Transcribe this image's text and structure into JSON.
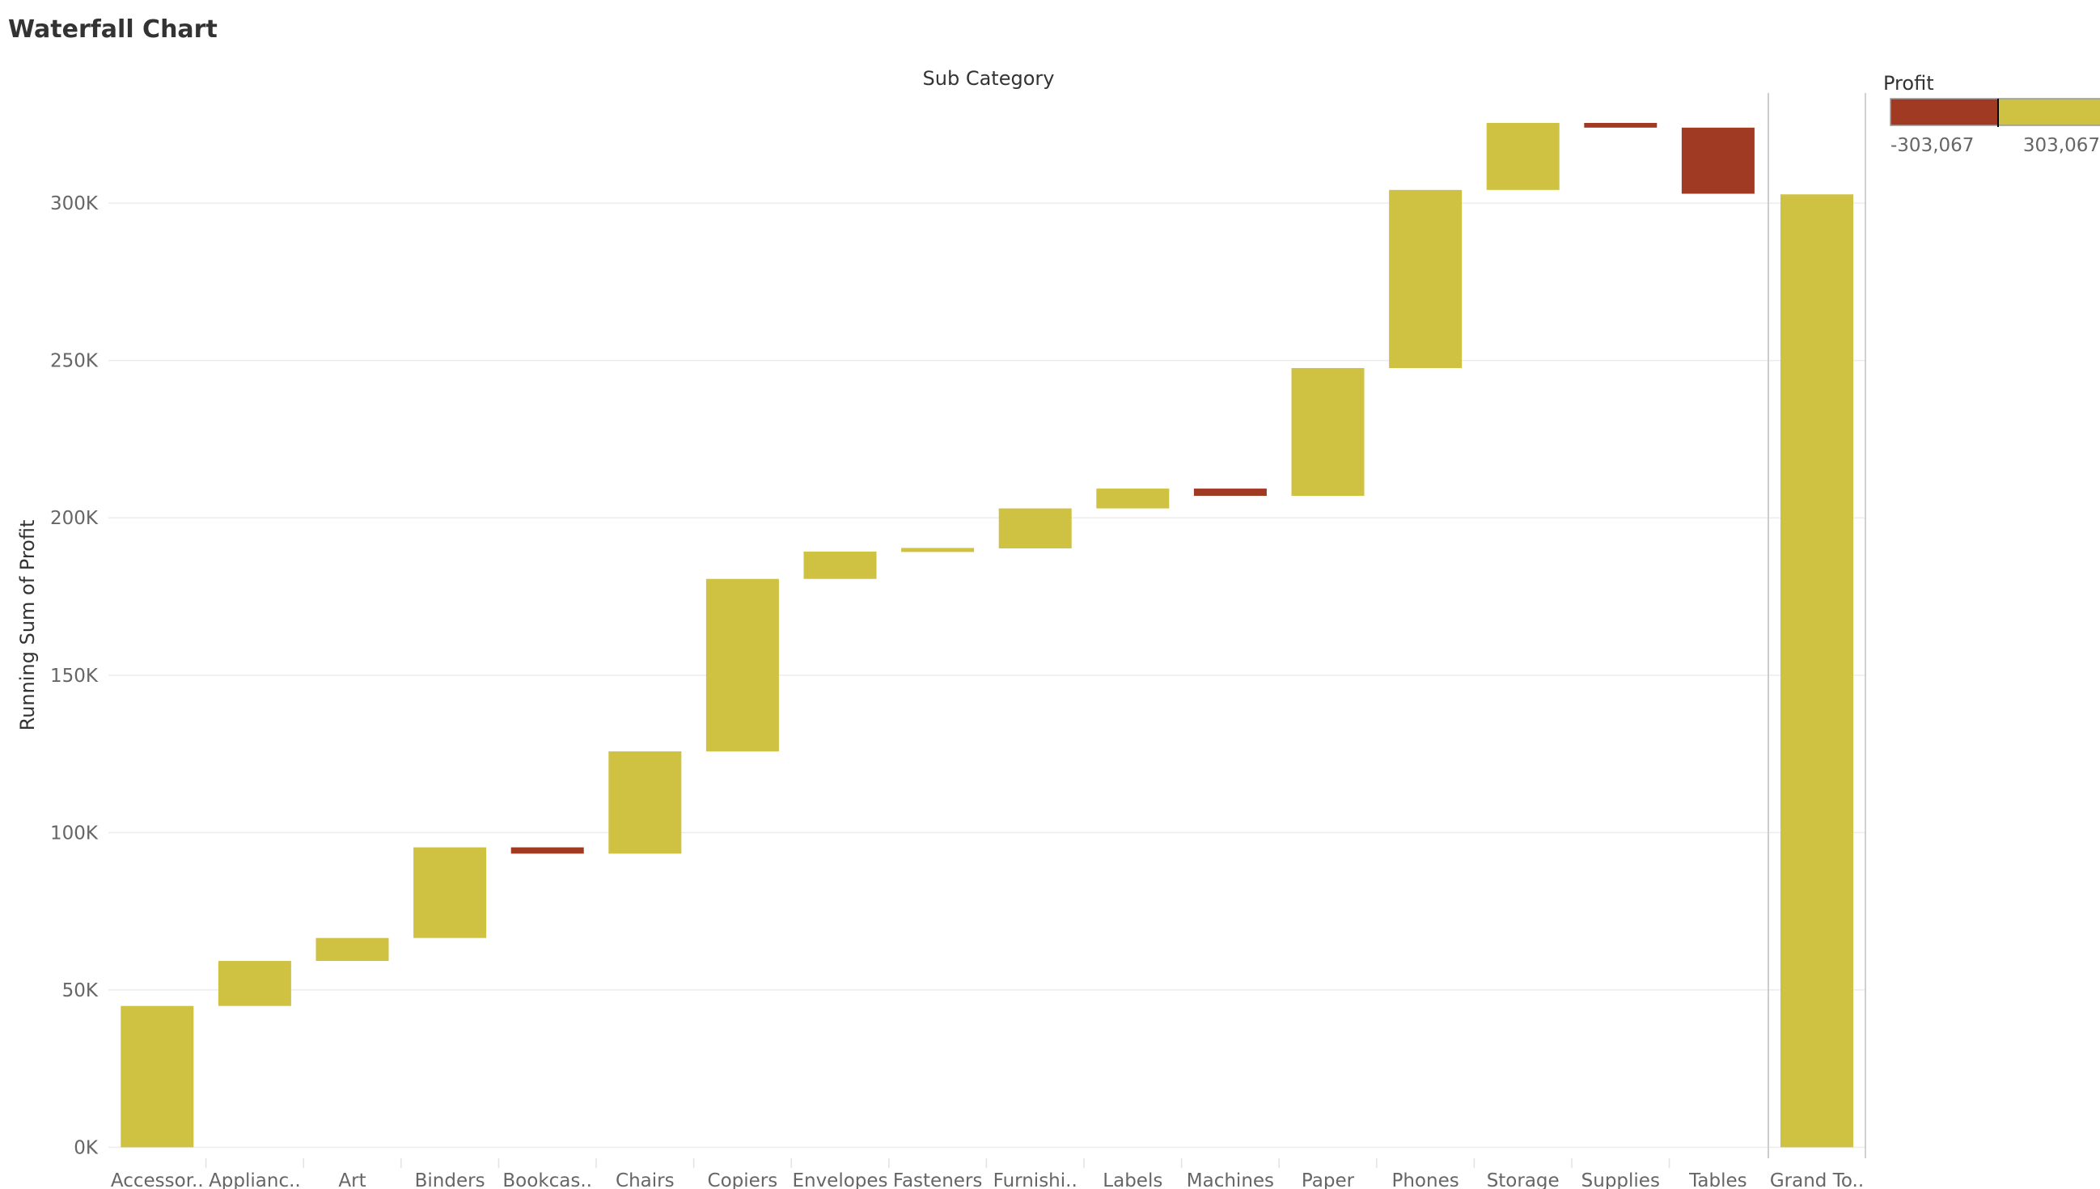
{
  "title": "Waterfall Chart",
  "chart_data": {
    "type": "bar",
    "subtype": "waterfall",
    "column_header": "Sub Category",
    "ylabel": "Running Sum of Profit",
    "ylim": [
      -3500,
      335000
    ],
    "yticks": [
      0,
      50000,
      100000,
      150000,
      200000,
      250000,
      300000
    ],
    "ytick_labels": [
      "0K",
      "50K",
      "100K",
      "150K",
      "200K",
      "250K",
      "300K"
    ],
    "grid": true,
    "categories": [
      "Accessor..",
      "Applianc..",
      "Art",
      "Binders",
      "Bookcas..",
      "Chairs",
      "Copiers",
      "Envelopes",
      "Fasteners",
      "Furnishi..",
      "Labels",
      "Machines",
      "Paper",
      "Phones",
      "Storage",
      "Supplies",
      "Tables"
    ],
    "values": [
      44900,
      14300,
      7300,
      28800,
      -2000,
      32500,
      54800,
      8700,
      1000,
      12700,
      6300,
      -2300,
      40600,
      56600,
      21300,
      -1500,
      -21000
    ],
    "total": {
      "label": "Grand To..",
      "value": 302800
    },
    "colors": {
      "positive": "#cfc243",
      "negative": "#a03a23"
    },
    "legend": {
      "title": "Profit",
      "placement": "top-right",
      "min_label": "-303,067",
      "max_label": "303,067"
    }
  }
}
